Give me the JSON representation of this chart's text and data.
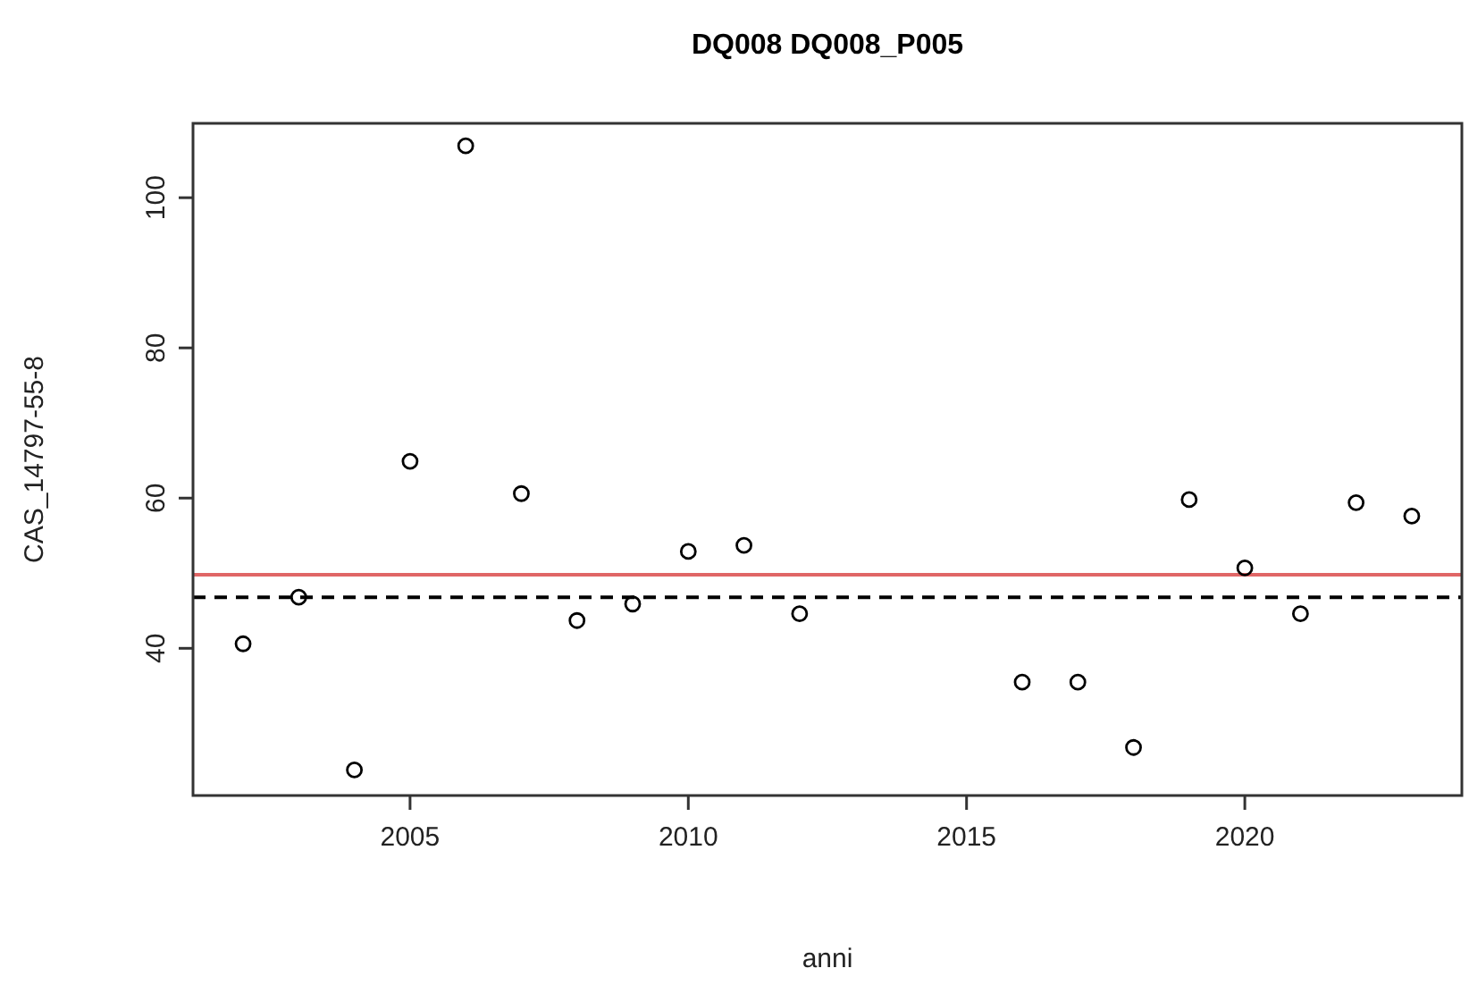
{
  "chart_data": {
    "type": "scatter",
    "title": "DQ008 DQ008_P005",
    "xlabel": "anni",
    "ylabel": "CAS_14797-55-8",
    "x": [
      2002,
      2003,
      2004,
      2005,
      2006,
      2007,
      2008,
      2009,
      2010,
      2011,
      2012,
      2016,
      2017,
      2018,
      2019,
      2020,
      2021,
      2022,
      2023
    ],
    "values": [
      40.6,
      46.8,
      23.8,
      64.9,
      106.9,
      60.6,
      43.7,
      45.9,
      52.9,
      53.7,
      44.6,
      35.5,
      35.5,
      26.8,
      59.8,
      50.7,
      44.6,
      59.4,
      57.6
    ],
    "color": "#000000",
    "marker": "circle",
    "xlim": [
      2001.1,
      2023.9
    ],
    "xticks": [
      2005,
      2010,
      2015,
      2020
    ],
    "ylim": [
      20.4,
      109.9
    ],
    "yticks": [
      40,
      60,
      80,
      100
    ],
    "ref_lines": [
      {
        "axis": "y",
        "value": 49.8,
        "color": "#e06666",
        "line_style": "solid"
      },
      {
        "axis": "y",
        "value": 46.8,
        "color": "#000000",
        "line_style": "dashed"
      }
    ],
    "grid": false
  }
}
